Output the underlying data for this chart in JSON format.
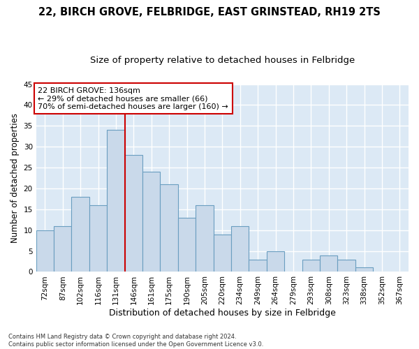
{
  "title1": "22, BIRCH GROVE, FELBRIDGE, EAST GRINSTEAD, RH19 2TS",
  "title2": "Size of property relative to detached houses in Felbridge",
  "xlabel": "Distribution of detached houses by size in Felbridge",
  "ylabel": "Number of detached properties",
  "categories": [
    "72sqm",
    "87sqm",
    "102sqm",
    "116sqm",
    "131sqm",
    "146sqm",
    "161sqm",
    "175sqm",
    "190sqm",
    "205sqm",
    "220sqm",
    "234sqm",
    "249sqm",
    "264sqm",
    "279sqm",
    "293sqm",
    "308sqm",
    "323sqm",
    "338sqm",
    "352sqm",
    "367sqm"
  ],
  "values": [
    10,
    11,
    18,
    16,
    34,
    28,
    24,
    21,
    13,
    16,
    9,
    11,
    3,
    5,
    0,
    3,
    4,
    3,
    1,
    0,
    0
  ],
  "bar_color": "#c9d9ea",
  "bar_edge_color": "#6a9ec0",
  "background_color": "#dce9f5",
  "grid_color": "#ffffff",
  "annotation_text": "22 BIRCH GROVE: 136sqm\n← 29% of detached houses are smaller (66)\n70% of semi-detached houses are larger (160) →",
  "annotation_box_color": "#ffffff",
  "annotation_box_edge": "#cc0000",
  "vline_color": "#cc0000",
  "vline_x": 4.5,
  "ylim": [
    0,
    45
  ],
  "yticks": [
    0,
    5,
    10,
    15,
    20,
    25,
    30,
    35,
    40,
    45
  ],
  "footnote": "Contains HM Land Registry data © Crown copyright and database right 2024.\nContains public sector information licensed under the Open Government Licence v3.0.",
  "title1_fontsize": 10.5,
  "title2_fontsize": 9.5,
  "xlabel_fontsize": 9,
  "ylabel_fontsize": 8.5,
  "tick_fontsize": 7.5,
  "annot_fontsize": 8,
  "footnote_fontsize": 6
}
